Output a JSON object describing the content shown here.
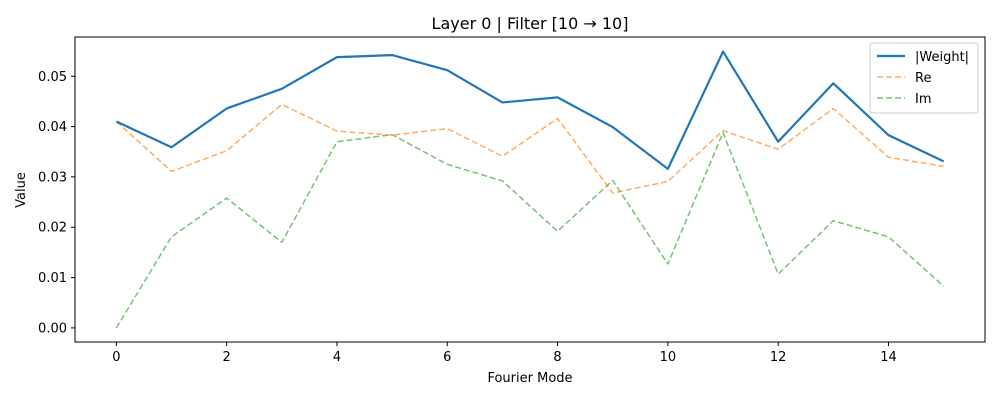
{
  "chart_data": {
    "type": "line",
    "title": "Layer 0 | Filter [10 → 10]",
    "xlabel": "Fourier Mode",
    "ylabel": "Value",
    "x": [
      0,
      1,
      2,
      3,
      4,
      5,
      6,
      7,
      8,
      9,
      10,
      11,
      12,
      13,
      14,
      15
    ],
    "xlim": [
      -0.75,
      15.75
    ],
    "ylim": [
      -0.0028,
      0.0578
    ],
    "xticks": [
      0,
      2,
      4,
      6,
      8,
      10,
      12,
      14
    ],
    "yticks": [
      0.0,
      0.01,
      0.02,
      0.03,
      0.04,
      0.05
    ],
    "ytick_labels": [
      "0.00",
      "0.01",
      "0.02",
      "0.03",
      "0.04",
      "0.05"
    ],
    "grid": false,
    "legend_position": "top-right",
    "series": [
      {
        "name": "|Weight|",
        "color": "#1f77b4",
        "style": "solid",
        "values": [
          0.041,
          0.0359,
          0.0436,
          0.0475,
          0.0538,
          0.0542,
          0.0512,
          0.0448,
          0.0458,
          0.0399,
          0.0316,
          0.0549,
          0.037,
          0.0486,
          0.0383,
          0.0331
        ]
      },
      {
        "name": "Re",
        "color": "#ff7f0e",
        "style": "dashed",
        "values": [
          0.041,
          0.0311,
          0.0352,
          0.0444,
          0.0391,
          0.0383,
          0.0396,
          0.0341,
          0.0416,
          0.0268,
          0.0291,
          0.0392,
          0.0355,
          0.0436,
          0.0339,
          0.0321
        ]
      },
      {
        "name": "Im",
        "color": "#2ca02c",
        "style": "dashed",
        "values": [
          0.0,
          0.0181,
          0.0258,
          0.017,
          0.037,
          0.0384,
          0.0325,
          0.0292,
          0.0192,
          0.0293,
          0.0127,
          0.0388,
          0.0107,
          0.0213,
          0.0181,
          0.0083
        ]
      }
    ]
  }
}
